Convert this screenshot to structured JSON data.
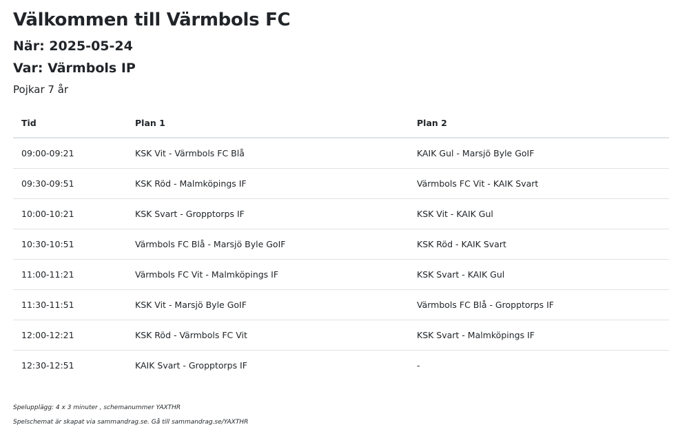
{
  "header": {
    "title": "Välkommen till Värmbols FC",
    "when": "När: 2025-05-24",
    "where": "Var: Värmbols IP",
    "category": "Pojkar 7 år"
  },
  "table": {
    "columns": [
      "Tid",
      "Plan 1",
      "Plan 2"
    ],
    "rows": [
      [
        "09:00-09:21",
        "KSK Vit - Värmbols FC Blå",
        "KAIK Gul - Marsjö Byle GoIF"
      ],
      [
        "09:30-09:51",
        "KSK Röd - Malmköpings IF",
        "Värmbols FC Vit - KAIK Svart"
      ],
      [
        "10:00-10:21",
        "KSK Svart - Gropptorps IF",
        "KSK Vit - KAIK Gul"
      ],
      [
        "10:30-10:51",
        "Värmbols FC Blå - Marsjö Byle GoIF",
        "KSK Röd - KAIK Svart"
      ],
      [
        "11:00-11:21",
        "Värmbols FC Vit - Malmköpings IF",
        "KSK Svart - KAIK Gul"
      ],
      [
        "11:30-11:51",
        "KSK Vit - Marsjö Byle GoIF",
        "Värmbols FC Blå - Gropptorps IF"
      ],
      [
        "12:00-12:21",
        "KSK Röd - Värmbols FC Vit",
        "KSK Svart - Malmköpings IF"
      ],
      [
        "12:30-12:51",
        "KAIK Svart - Gropptorps IF",
        "-"
      ]
    ]
  },
  "footer": {
    "setup": "Spelupplägg: 4 x 3 minuter , schemanummer YAXTHR",
    "created": "Spelschemat är skapat via sammandrag.se. Gå till sammandrag.se/YAXTHR"
  }
}
